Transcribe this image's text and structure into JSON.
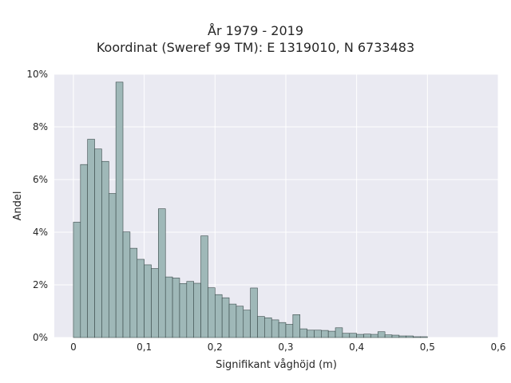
{
  "chart_data": {
    "type": "bar",
    "title_lines": [
      "År 1979 - 2019",
      "Koordinat (Sweref 99 TM): E 1319010, N 6733483"
    ],
    "xlabel": "Signifikant våghöjd (m)",
    "ylabel": "Andel",
    "xlim": [
      -0.027,
      0.6
    ],
    "ylim": [
      0,
      0.1
    ],
    "xticks": [
      0,
      0.1,
      0.2,
      0.3,
      0.4,
      0.5,
      0.6
    ],
    "xtick_labels": [
      "0",
      "0,1",
      "0,2",
      "0,3",
      "0,4",
      "0,5",
      "0,6"
    ],
    "yticks": [
      0,
      0.02,
      0.04,
      0.06,
      0.08,
      0.1
    ],
    "ytick_labels": [
      "0%",
      "2%",
      "4%",
      "6%",
      "8%",
      "10%"
    ],
    "bin_start": 0,
    "bin_width": 0.01,
    "values": [
      0.0438,
      0.0657,
      0.0753,
      0.0716,
      0.0669,
      0.0547,
      0.097,
      0.0401,
      0.0339,
      0.0297,
      0.0276,
      0.0262,
      0.0489,
      0.023,
      0.0226,
      0.0205,
      0.0213,
      0.0206,
      0.0386,
      0.0189,
      0.0163,
      0.0151,
      0.0127,
      0.0119,
      0.0104,
      0.0188,
      0.008,
      0.0075,
      0.0067,
      0.0057,
      0.005,
      0.0087,
      0.0033,
      0.0028,
      0.0028,
      0.0027,
      0.0024,
      0.0037,
      0.0016,
      0.0016,
      0.0012,
      0.0013,
      0.0012,
      0.0022,
      0.001,
      0.0009,
      0.0006,
      0.0006,
      0.0003,
      0.0003
    ],
    "grid": true,
    "colors": {
      "bar_fill": "#9fb8b8",
      "bar_edge": "#3a4a4a",
      "plot_bg": "#eaeaf2",
      "grid": "#ffffff"
    }
  }
}
